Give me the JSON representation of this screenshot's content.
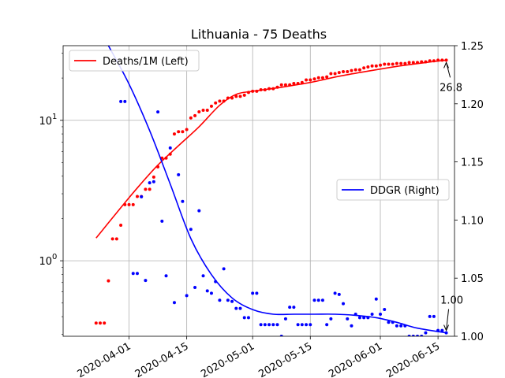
{
  "chart_data": {
    "type": "line",
    "title": "Lithuania - 75 Deaths",
    "xlabel": "",
    "ylabel_left": "",
    "ylabel_right": "",
    "x_ticks": [
      "2020-04-01",
      "2020-04-15",
      "2020-05-01",
      "2020-05-15",
      "2020-06-01",
      "2020-06-15"
    ],
    "xlim": [
      "2020-03-16",
      "2020-06-19"
    ],
    "left_axis": {
      "scale": "log",
      "ylim": [
        0.29,
        34
      ],
      "ticks": [
        1,
        10
      ],
      "tick_labels": [
        "10^0",
        "10^1"
      ]
    },
    "right_axis": {
      "scale": "linear",
      "ylim": [
        1.0,
        1.25
      ],
      "ticks": [
        1.0,
        1.05,
        1.1,
        1.15,
        1.2,
        1.25
      ],
      "tick_labels": [
        "1.00",
        "1.05",
        "1.10",
        "1.15",
        "1.20",
        "1.25"
      ]
    },
    "grid": true,
    "legends": [
      {
        "label": "Deaths/1M (Left)",
        "color": "#ff0000",
        "placement": "top-left"
      },
      {
        "label": "DDGR (Right)",
        "color": "#0000ff",
        "placement": "center-right"
      }
    ],
    "series": [
      {
        "name": "Deaths/1M (Left)",
        "axis": "left",
        "color": "#ff0000",
        "line": {
          "x": [
            "2020-03-24",
            "2020-03-29",
            "2020-04-03",
            "2020-04-08",
            "2020-04-13",
            "2020-04-18",
            "2020-04-23",
            "2020-04-27",
            "2020-05-01",
            "2020-05-08",
            "2020-05-15",
            "2020-05-22",
            "2020-05-29",
            "2020-06-05",
            "2020-06-12",
            "2020-06-17"
          ],
          "y": [
            1.45,
            2.2,
            3.3,
            4.8,
            6.6,
            9.0,
            12.8,
            15.3,
            16.1,
            17.2,
            18.6,
            20.6,
            22.4,
            24.2,
            25.8,
            26.8
          ]
        },
        "points": {
          "x": [
            "2020-03-24",
            "2020-03-25",
            "2020-03-26",
            "2020-03-27",
            "2020-03-28",
            "2020-03-29",
            "2020-03-30",
            "2020-03-31",
            "2020-04-01",
            "2020-04-02",
            "2020-04-03",
            "2020-04-04",
            "2020-04-05",
            "2020-04-06",
            "2020-04-07",
            "2020-04-08",
            "2020-04-09",
            "2020-04-10",
            "2020-04-11",
            "2020-04-12",
            "2020-04-13",
            "2020-04-14",
            "2020-04-15",
            "2020-04-16",
            "2020-04-17",
            "2020-04-18",
            "2020-04-19",
            "2020-04-20",
            "2020-04-21",
            "2020-04-22",
            "2020-04-23",
            "2020-04-24",
            "2020-04-25",
            "2020-04-26",
            "2020-04-27",
            "2020-04-28",
            "2020-04-29",
            "2020-04-30",
            "2020-05-01",
            "2020-05-02",
            "2020-05-03",
            "2020-05-04",
            "2020-05-05",
            "2020-05-06",
            "2020-05-07",
            "2020-05-08",
            "2020-05-09",
            "2020-05-10",
            "2020-05-11",
            "2020-05-12",
            "2020-05-13",
            "2020-05-14",
            "2020-05-15",
            "2020-05-16",
            "2020-05-17",
            "2020-05-18",
            "2020-05-19",
            "2020-05-20",
            "2020-05-21",
            "2020-05-22",
            "2020-05-23",
            "2020-05-24",
            "2020-05-25",
            "2020-05-26",
            "2020-05-27",
            "2020-05-28",
            "2020-05-29",
            "2020-05-30",
            "2020-05-31",
            "2020-06-01",
            "2020-06-02",
            "2020-06-03",
            "2020-06-04",
            "2020-06-05",
            "2020-06-06",
            "2020-06-07",
            "2020-06-08",
            "2020-06-09",
            "2020-06-10",
            "2020-06-11",
            "2020-06-12",
            "2020-06-13",
            "2020-06-14",
            "2020-06-15",
            "2020-06-16",
            "2020-06-17"
          ],
          "y": [
            0.36,
            0.36,
            0.36,
            0.72,
            1.43,
            1.43,
            1.79,
            2.51,
            2.51,
            2.51,
            2.87,
            2.87,
            3.23,
            3.23,
            3.94,
            4.66,
            5.38,
            5.38,
            5.74,
            8.0,
            8.3,
            8.3,
            8.6,
            10.4,
            10.8,
            11.5,
            11.8,
            11.8,
            12.6,
            13.3,
            13.7,
            13.7,
            14.4,
            14.4,
            14.8,
            14.8,
            15.1,
            15.8,
            16.1,
            16.1,
            16.5,
            16.5,
            16.8,
            16.8,
            17.2,
            17.9,
            17.9,
            17.9,
            18.3,
            18.3,
            18.6,
            19.4,
            19.4,
            19.7,
            20.1,
            20.1,
            20.4,
            21.5,
            21.5,
            21.9,
            22.2,
            22.2,
            22.6,
            22.9,
            22.9,
            23.6,
            24.0,
            24.4,
            24.4,
            24.7,
            25.1,
            25.1,
            25.1,
            25.4,
            25.4,
            25.4,
            25.8,
            25.8,
            25.8,
            26.1,
            26.1,
            26.5,
            26.5,
            26.8,
            26.8,
            26.8
          ]
        }
      },
      {
        "name": "DDGR (Right)",
        "axis": "right",
        "color": "#0000ff",
        "line": {
          "x": [
            "2020-03-27",
            "2020-04-01",
            "2020-04-06",
            "2020-04-11",
            "2020-04-16",
            "2020-04-21",
            "2020-04-26",
            "2020-05-01",
            "2020-05-06",
            "2020-05-11",
            "2020-05-16",
            "2020-05-21",
            "2020-05-26",
            "2020-05-31",
            "2020-06-05",
            "2020-06-10",
            "2020-06-17"
          ],
          "y": [
            1.25,
            1.217,
            1.177,
            1.131,
            1.084,
            1.053,
            1.033,
            1.023,
            1.019,
            1.019,
            1.019,
            1.019,
            1.018,
            1.016,
            1.012,
            1.007,
            1.003
          ]
        },
        "points": {
          "x": [
            "2020-03-30",
            "2020-03-31",
            "2020-04-02",
            "2020-04-03",
            "2020-04-04",
            "2020-04-05",
            "2020-04-06",
            "2020-04-07",
            "2020-04-08",
            "2020-04-09",
            "2020-04-10",
            "2020-04-11",
            "2020-04-12",
            "2020-04-13",
            "2020-04-14",
            "2020-04-15",
            "2020-04-16",
            "2020-04-17",
            "2020-04-18",
            "2020-04-19",
            "2020-04-20",
            "2020-04-21",
            "2020-04-22",
            "2020-04-23",
            "2020-04-24",
            "2020-04-25",
            "2020-04-26",
            "2020-04-27",
            "2020-04-28",
            "2020-04-29",
            "2020-04-30",
            "2020-05-01",
            "2020-05-02",
            "2020-05-03",
            "2020-05-04",
            "2020-05-05",
            "2020-05-06",
            "2020-05-07",
            "2020-05-08",
            "2020-05-09",
            "2020-05-10",
            "2020-05-11",
            "2020-05-12",
            "2020-05-13",
            "2020-05-14",
            "2020-05-15",
            "2020-05-16",
            "2020-05-17",
            "2020-05-18",
            "2020-05-19",
            "2020-05-20",
            "2020-05-21",
            "2020-05-22",
            "2020-05-23",
            "2020-05-24",
            "2020-05-25",
            "2020-05-26",
            "2020-05-27",
            "2020-05-28",
            "2020-05-29",
            "2020-05-30",
            "2020-05-31",
            "2020-06-01",
            "2020-06-02",
            "2020-06-03",
            "2020-06-04",
            "2020-06-05",
            "2020-06-06",
            "2020-06-07",
            "2020-06-08",
            "2020-06-09",
            "2020-06-10",
            "2020-06-11",
            "2020-06-12",
            "2020-06-13",
            "2020-06-14",
            "2020-06-15",
            "2020-06-16",
            "2020-06-17"
          ],
          "y": [
            1.202,
            1.202,
            1.054,
            1.054,
            1.12,
            1.048,
            1.132,
            1.133,
            1.193,
            1.099,
            1.052,
            1.162,
            1.029,
            1.139,
            1.116,
            1.035,
            1.092,
            1.042,
            1.108,
            1.052,
            1.039,
            1.037,
            1.047,
            1.031,
            1.058,
            1.031,
            1.03,
            1.024,
            1.024,
            1.016,
            1.016,
            1.037,
            1.037,
            1.01,
            1.01,
            1.01,
            1.01,
            1.01,
            1.0,
            1.015,
            1.025,
            1.025,
            1.01,
            1.01,
            1.01,
            1.01,
            1.031,
            1.031,
            1.031,
            1.01,
            1.015,
            1.037,
            1.036,
            1.028,
            1.015,
            1.009,
            1.019,
            1.016,
            1.016,
            1.016,
            1.019,
            1.032,
            1.019,
            1.023,
            1.012,
            1.012,
            1.009,
            1.009,
            1.009,
            1.0,
            1.0,
            1.0,
            1.0,
            1.003,
            1.017,
            1.017,
            1.005,
            1.005,
            1.003
          ]
        }
      }
    ],
    "annotations": [
      {
        "text": "26.8",
        "axis": "left",
        "x": "2020-06-17",
        "y": 26.8
      },
      {
        "text": "1.00",
        "axis": "right",
        "x": "2020-06-17",
        "y": 1.003
      }
    ]
  }
}
